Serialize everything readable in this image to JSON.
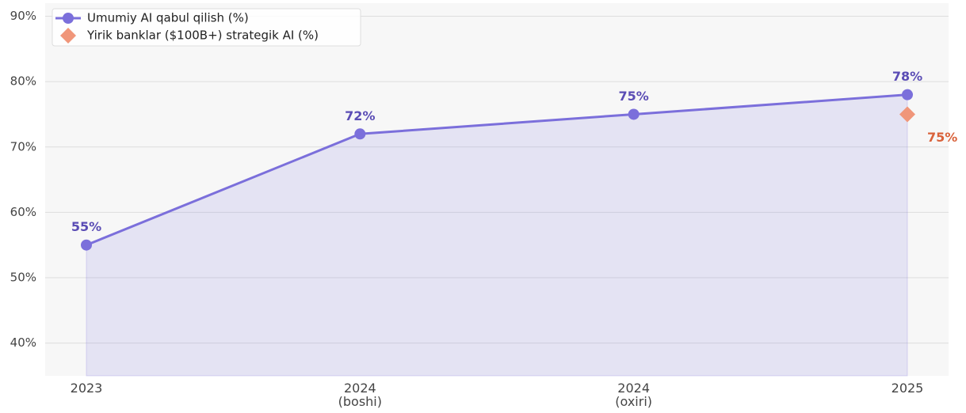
{
  "chart_data": {
    "type": "line",
    "categories": [
      "2023",
      "2024\n(boshi)",
      "2024\n(oxiri)",
      "2025"
    ],
    "series": [
      {
        "name": "Umumiy AI qabul qilish (%)",
        "color": "#7b6fdb",
        "label_color": "#5b4db5",
        "marker": "circle",
        "line": true,
        "area": true,
        "values": [
          55,
          72,
          75,
          78
        ],
        "value_labels": [
          "55%",
          "72%",
          "75%",
          "78%"
        ]
      },
      {
        "name": "Yirik banklar ($100B+) strategik AI (%)",
        "color": "#f0967a",
        "label_color": "#d9623b",
        "marker": "diamond",
        "line": false,
        "area": false,
        "values": [
          null,
          null,
          null,
          75
        ],
        "value_labels": [
          null,
          null,
          null,
          "75%"
        ]
      }
    ],
    "ylim": [
      35,
      92
    ],
    "yticks": [
      {
        "value": 40,
        "label": "40%"
      },
      {
        "value": 50,
        "label": "50%"
      },
      {
        "value": 60,
        "label": "60%"
      },
      {
        "value": 70,
        "label": "70%"
      },
      {
        "value": 80,
        "label": "80%"
      },
      {
        "value": 90,
        "label": "90%"
      }
    ],
    "grid": true,
    "legend": "upper left"
  }
}
